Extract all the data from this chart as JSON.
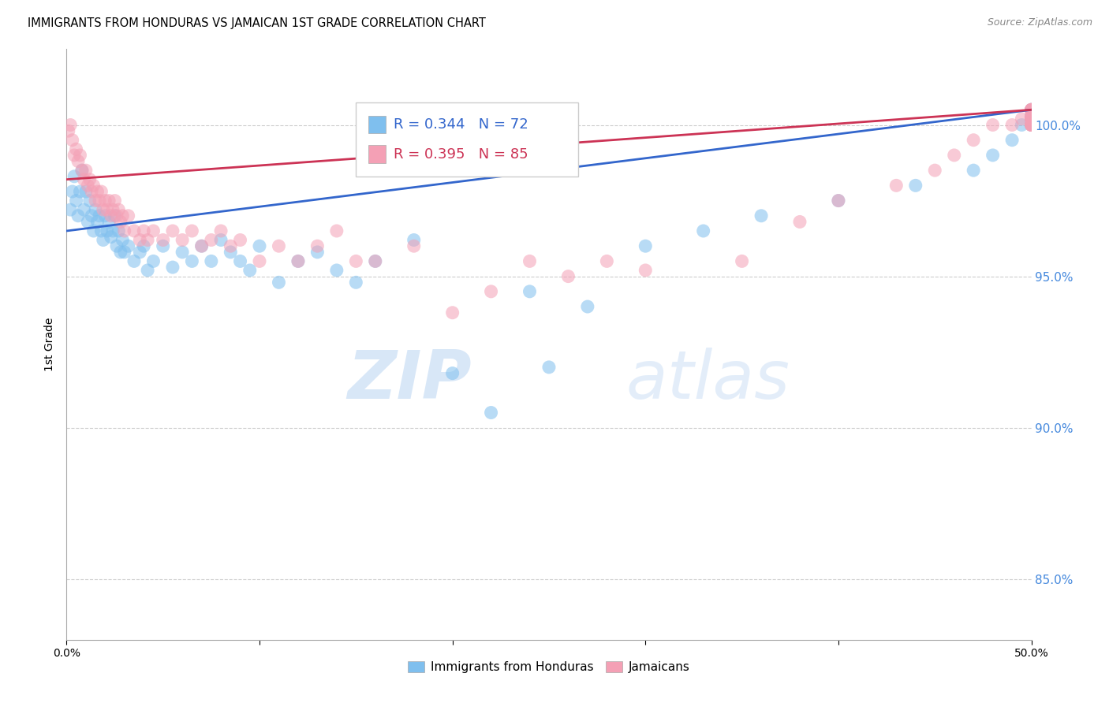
{
  "title": "IMMIGRANTS FROM HONDURAS VS JAMAICAN 1ST GRADE CORRELATION CHART",
  "source": "Source: ZipAtlas.com",
  "ylabel": "1st Grade",
  "xmin": 0.0,
  "xmax": 50.0,
  "ymin": 83.0,
  "ymax": 102.5,
  "yticks": [
    85.0,
    90.0,
    95.0,
    100.0
  ],
  "blue_R": 0.344,
  "blue_N": 72,
  "pink_R": 0.395,
  "pink_N": 85,
  "blue_color": "#7fbfee",
  "pink_color": "#f4a0b5",
  "blue_line_color": "#3366cc",
  "pink_line_color": "#cc3355",
  "legend_blue_text_color": "#3366cc",
  "legend_pink_text_color": "#cc3355",
  "watermark_zip": "ZIP",
  "watermark_atlas": "atlas",
  "grid_color": "#cccccc",
  "blue_x": [
    0.2,
    0.3,
    0.4,
    0.5,
    0.6,
    0.7,
    0.8,
    0.9,
    1.0,
    1.1,
    1.2,
    1.3,
    1.4,
    1.5,
    1.6,
    1.7,
    1.8,
    1.9,
    2.0,
    2.1,
    2.2,
    2.3,
    2.4,
    2.5,
    2.6,
    2.7,
    2.8,
    2.9,
    3.0,
    3.2,
    3.5,
    3.8,
    4.0,
    4.2,
    4.5,
    5.0,
    5.5,
    6.0,
    6.5,
    7.0,
    7.5,
    8.0,
    8.5,
    9.0,
    9.5,
    10.0,
    11.0,
    12.0,
    13.0,
    14.0,
    15.0,
    16.0,
    18.0,
    20.0,
    22.0,
    24.0,
    25.0,
    27.0,
    30.0,
    33.0,
    36.0,
    40.0,
    44.0,
    47.0,
    48.0,
    49.0,
    49.5,
    50.0,
    50.0,
    50.0,
    50.0,
    50.0
  ],
  "blue_y": [
    97.2,
    97.8,
    98.3,
    97.5,
    97.0,
    97.8,
    98.5,
    97.2,
    97.8,
    96.8,
    97.5,
    97.0,
    96.5,
    97.2,
    96.8,
    97.0,
    96.5,
    96.2,
    97.0,
    96.5,
    96.8,
    96.3,
    96.5,
    97.0,
    96.0,
    96.5,
    95.8,
    96.2,
    95.8,
    96.0,
    95.5,
    95.8,
    96.0,
    95.2,
    95.5,
    96.0,
    95.3,
    95.8,
    95.5,
    96.0,
    95.5,
    96.2,
    95.8,
    95.5,
    95.2,
    96.0,
    94.8,
    95.5,
    95.8,
    95.2,
    94.8,
    95.5,
    96.2,
    91.8,
    90.5,
    94.5,
    92.0,
    94.0,
    96.0,
    96.5,
    97.0,
    97.5,
    98.0,
    98.5,
    99.0,
    99.5,
    100.0,
    100.0,
    100.2,
    100.5,
    100.3,
    100.5
  ],
  "pink_x": [
    0.1,
    0.2,
    0.3,
    0.4,
    0.5,
    0.6,
    0.7,
    0.8,
    0.9,
    1.0,
    1.1,
    1.2,
    1.3,
    1.4,
    1.5,
    1.6,
    1.7,
    1.8,
    1.9,
    2.0,
    2.1,
    2.2,
    2.3,
    2.4,
    2.5,
    2.6,
    2.7,
    2.8,
    2.9,
    3.0,
    3.2,
    3.5,
    3.8,
    4.0,
    4.2,
    4.5,
    5.0,
    5.5,
    6.0,
    6.5,
    7.0,
    7.5,
    8.0,
    8.5,
    9.0,
    10.0,
    11.0,
    12.0,
    13.0,
    14.0,
    15.0,
    16.0,
    18.0,
    20.0,
    22.0,
    24.0,
    26.0,
    28.0,
    30.0,
    35.0,
    38.0,
    40.0,
    43.0,
    45.0,
    46.0,
    47.0,
    48.0,
    49.0,
    49.5,
    50.0,
    50.0,
    50.0,
    50.0,
    50.0,
    50.0,
    50.0,
    50.0,
    50.0,
    50.0,
    50.0,
    50.0,
    50.0,
    50.0,
    50.0,
    50.0
  ],
  "pink_y": [
    99.8,
    100.0,
    99.5,
    99.0,
    99.2,
    98.8,
    99.0,
    98.5,
    98.2,
    98.5,
    98.0,
    98.2,
    97.8,
    98.0,
    97.5,
    97.8,
    97.5,
    97.8,
    97.2,
    97.5,
    97.2,
    97.5,
    97.0,
    97.2,
    97.5,
    97.0,
    97.2,
    96.8,
    97.0,
    96.5,
    97.0,
    96.5,
    96.2,
    96.5,
    96.2,
    96.5,
    96.2,
    96.5,
    96.2,
    96.5,
    96.0,
    96.2,
    96.5,
    96.0,
    96.2,
    95.5,
    96.0,
    95.5,
    96.0,
    96.5,
    95.5,
    95.5,
    96.0,
    93.8,
    94.5,
    95.5,
    95.0,
    95.5,
    95.2,
    95.5,
    96.8,
    97.5,
    98.0,
    98.5,
    99.0,
    99.5,
    100.0,
    100.0,
    100.2,
    100.0,
    100.3,
    100.5,
    100.2,
    100.0,
    100.5,
    100.2,
    100.0,
    100.3,
    100.5,
    100.0,
    100.2,
    100.5,
    100.0,
    100.2,
    100.5
  ]
}
